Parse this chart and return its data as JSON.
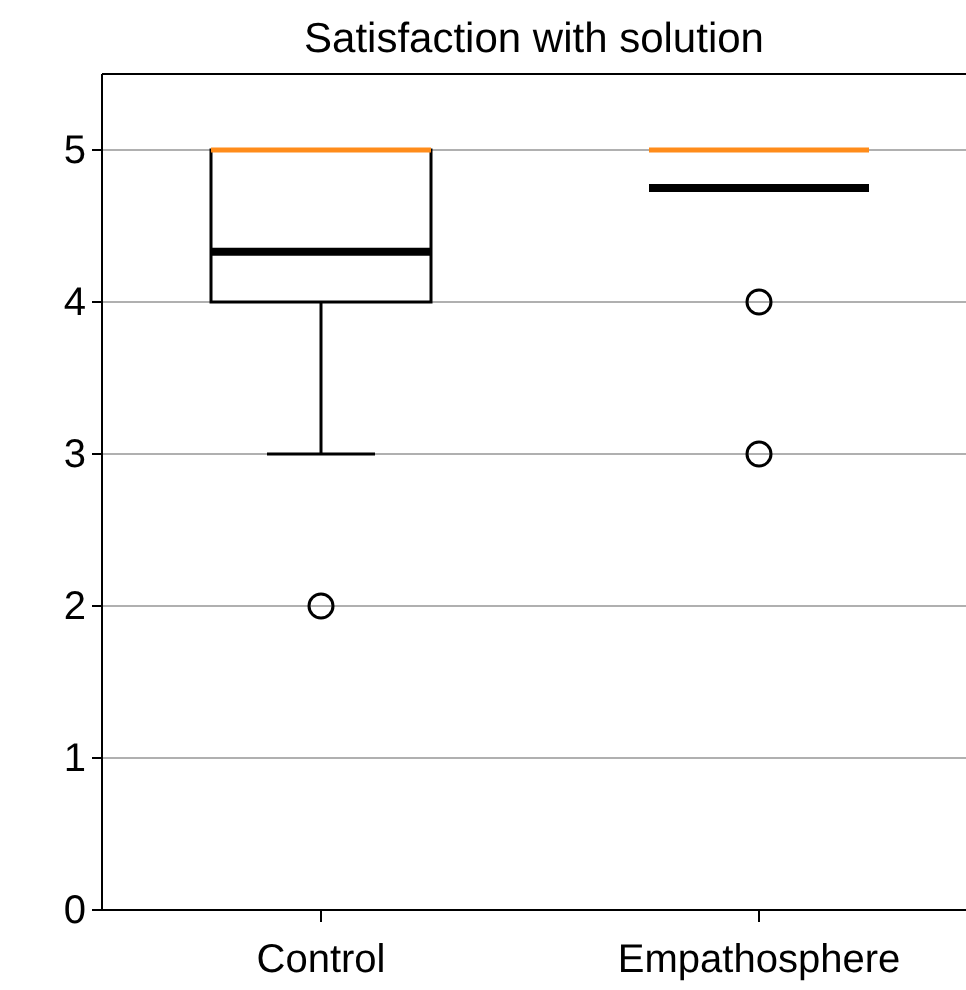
{
  "chart_data": {
    "type": "box",
    "title": "Satisfaction with solution",
    "categories": [
      "Control",
      "Empathosphere"
    ],
    "boxes": [
      {
        "low": 3,
        "q1": 4,
        "median": 5,
        "q3": 5,
        "high": 5,
        "mean": 4.33,
        "outliers": [
          2
        ]
      },
      {
        "low": 5,
        "q1": 5,
        "median": 5,
        "q3": 5,
        "high": 5,
        "mean": 4.75,
        "outliers": [
          4,
          3
        ]
      }
    ],
    "ylim": [
      0,
      5.5
    ],
    "yticks": [
      0,
      1,
      2,
      3,
      4,
      5
    ],
    "grid": "y"
  }
}
